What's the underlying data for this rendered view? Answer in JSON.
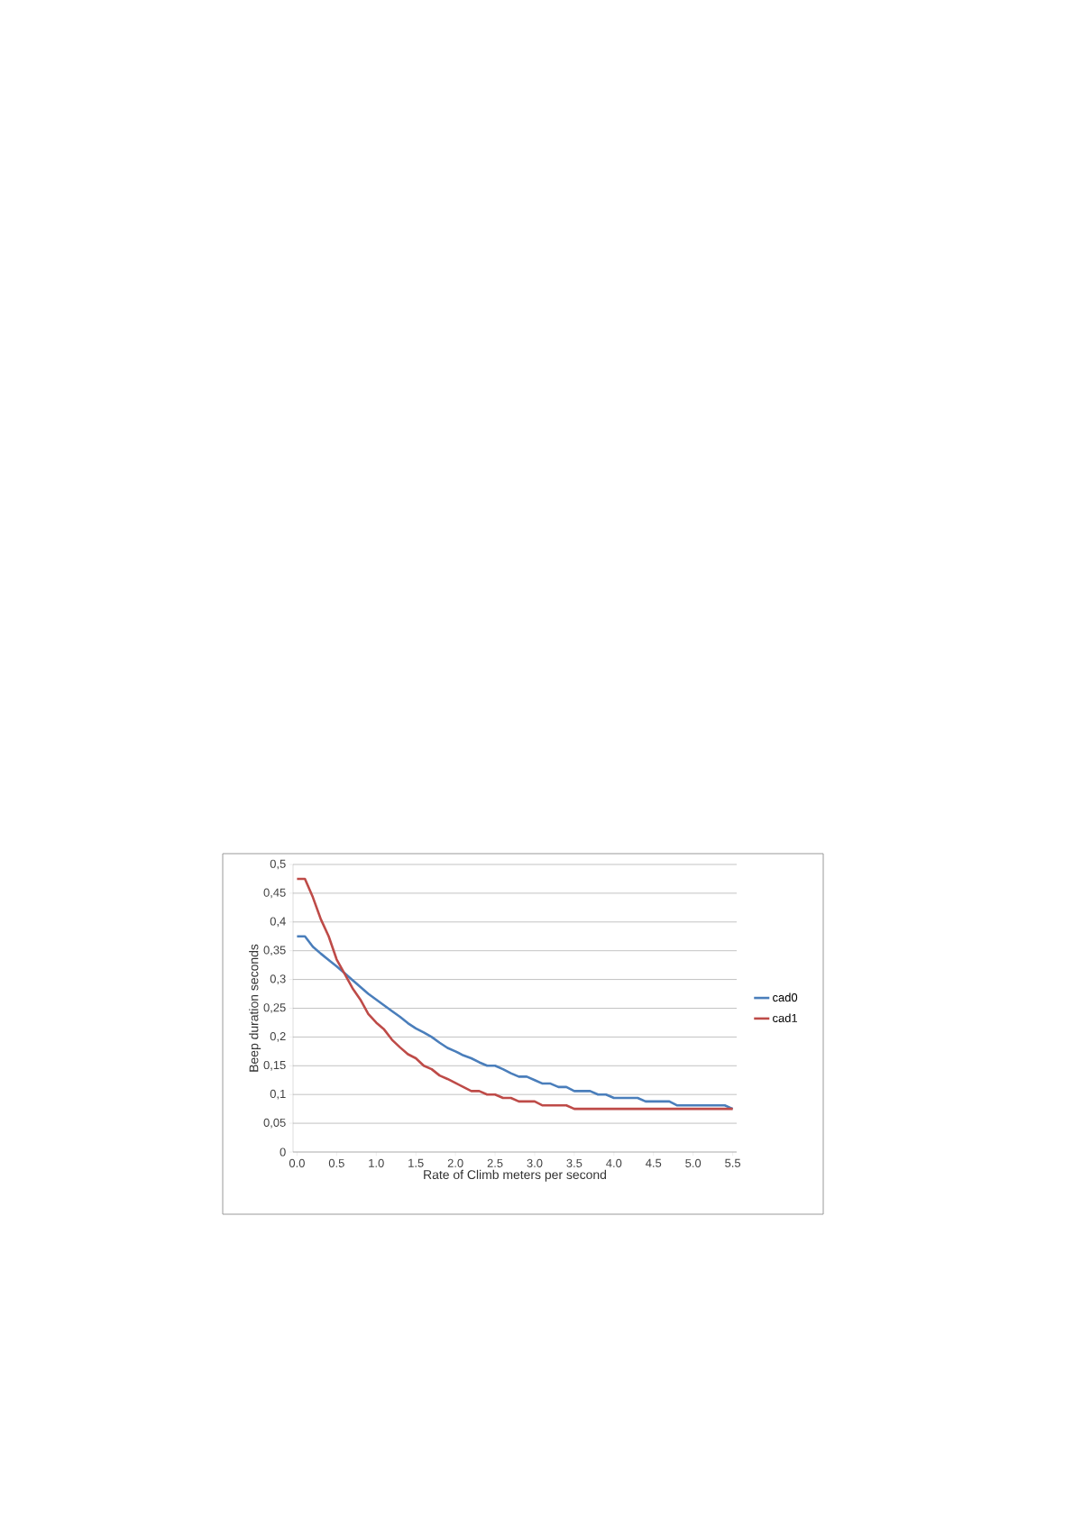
{
  "chart_data": {
    "type": "line",
    "xlabel": "Rate of Climb meters per second",
    "ylabel": "Beep duration seconds",
    "x": [
      0.0,
      0.1,
      0.2,
      0.3,
      0.4,
      0.5,
      0.6,
      0.7,
      0.8,
      0.9,
      1.0,
      1.1,
      1.2,
      1.3,
      1.4,
      1.5,
      1.6,
      1.7,
      1.8,
      1.9,
      2.0,
      2.1,
      2.2,
      2.3,
      2.4,
      2.5,
      2.6,
      2.7,
      2.8,
      2.9,
      3.0,
      3.1,
      3.2,
      3.3,
      3.4,
      3.5,
      3.6,
      3.7,
      3.8,
      3.9,
      4.0,
      4.1,
      4.2,
      4.3,
      4.4,
      4.5,
      4.6,
      4.7,
      4.8,
      4.9,
      5.0,
      5.1,
      5.2,
      5.3,
      5.4,
      5.5
    ],
    "series": [
      {
        "name": "cad0",
        "color": "#4a7ebb",
        "values": [
          0.375,
          0.375,
          0.357,
          0.345,
          0.334,
          0.323,
          0.311,
          0.299,
          0.287,
          0.275,
          0.265,
          0.255,
          0.245,
          0.235,
          0.224,
          0.215,
          0.208,
          0.2,
          0.19,
          0.181,
          0.175,
          0.168,
          0.163,
          0.156,
          0.15,
          0.15,
          0.144,
          0.137,
          0.131,
          0.131,
          0.125,
          0.119,
          0.119,
          0.113,
          0.113,
          0.106,
          0.106,
          0.106,
          0.1,
          0.1,
          0.094,
          0.094,
          0.094,
          0.094,
          0.088,
          0.088,
          0.088,
          0.088,
          0.081,
          0.081,
          0.081,
          0.081,
          0.081,
          0.081,
          0.081,
          0.075
        ]
      },
      {
        "name": "cad1",
        "color": "#be4b48",
        "values": [
          0.475,
          0.475,
          0.443,
          0.405,
          0.375,
          0.335,
          0.31,
          0.285,
          0.265,
          0.24,
          0.225,
          0.213,
          0.195,
          0.182,
          0.17,
          0.163,
          0.15,
          0.144,
          0.133,
          0.127,
          0.12,
          0.113,
          0.106,
          0.106,
          0.1,
          0.1,
          0.094,
          0.094,
          0.088,
          0.088,
          0.088,
          0.081,
          0.081,
          0.081,
          0.081,
          0.075,
          0.075,
          0.075,
          0.075,
          0.075,
          0.075,
          0.075,
          0.075,
          0.075,
          0.075,
          0.075,
          0.075,
          0.075,
          0.075,
          0.075,
          0.075,
          0.075,
          0.075,
          0.075,
          0.075,
          0.075
        ]
      }
    ],
    "xlim": [
      -0.05,
      5.55
    ],
    "xticks": [
      {
        "value": 0,
        "label": "0.0"
      },
      {
        "value": 0.5,
        "label": "0.5"
      },
      {
        "value": 1,
        "label": "1.0"
      },
      {
        "value": 1.5,
        "label": "1.5"
      },
      {
        "value": 2,
        "label": "2.0"
      },
      {
        "value": 2.5,
        "label": "2.5"
      },
      {
        "value": 3,
        "label": "3.0"
      },
      {
        "value": 3.5,
        "label": "3.5"
      },
      {
        "value": 4,
        "label": "4.0"
      },
      {
        "value": 4.5,
        "label": "4.5"
      },
      {
        "value": 5,
        "label": "5.0"
      },
      {
        "value": 5.5,
        "label": "5.5"
      }
    ],
    "ylim": [
      0,
      0.5
    ],
    "yticks": [
      0,
      {
        "value": 0.05,
        "label": "0,05"
      },
      {
        "value": 0.1,
        "label": "0,1"
      },
      {
        "value": 0.15,
        "label": "0,15"
      },
      {
        "value": 0.2,
        "label": "0,2"
      },
      {
        "value": 0.25,
        "label": "0,25"
      },
      {
        "value": 0.3,
        "label": "0,3"
      },
      {
        "value": 0.35,
        "label": "0,35"
      },
      {
        "value": 0.4,
        "label": "0,4"
      },
      {
        "value": 0.45,
        "label": "0,45"
      },
      {
        "value": 0.5,
        "label": "0,5"
      }
    ],
    "grid": "y",
    "legend": "right",
    "marker": "none",
    "line_style": "solid"
  }
}
